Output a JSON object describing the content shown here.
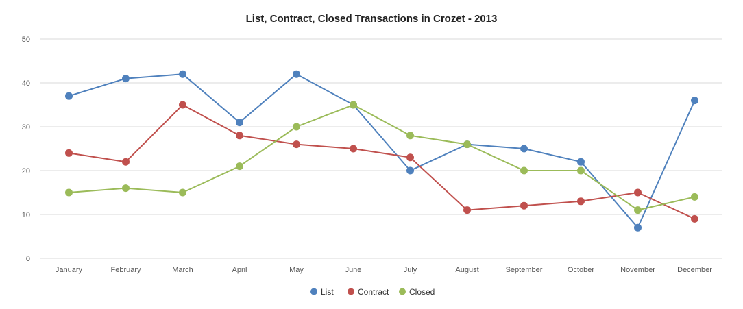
{
  "chart_data": {
    "type": "line",
    "title": "List, Contract, Closed Transactions in Crozet - 2013",
    "xlabel": "",
    "ylabel": "",
    "ylim": [
      0,
      50
    ],
    "yticks": [
      "0",
      "10",
      "20",
      "30",
      "40",
      "50"
    ],
    "grid": true,
    "legend_position": "bottom",
    "categories": [
      "January",
      "February",
      "March",
      "April",
      "May",
      "June",
      "July",
      "August",
      "September",
      "October",
      "November",
      "December"
    ],
    "series": [
      {
        "name": "List",
        "color": "#4f81bd",
        "values": [
          37,
          41,
          42,
          31,
          42,
          35,
          20,
          26,
          25,
          22,
          7,
          36
        ]
      },
      {
        "name": "Contract",
        "color": "#c0504d",
        "values": [
          24,
          22,
          35,
          28,
          26,
          25,
          23,
          11,
          12,
          13,
          15,
          9
        ]
      },
      {
        "name": "Closed",
        "color": "#9bbb59",
        "values": [
          15,
          16,
          15,
          21,
          30,
          35,
          28,
          26,
          20,
          20,
          11,
          14
        ]
      }
    ]
  }
}
